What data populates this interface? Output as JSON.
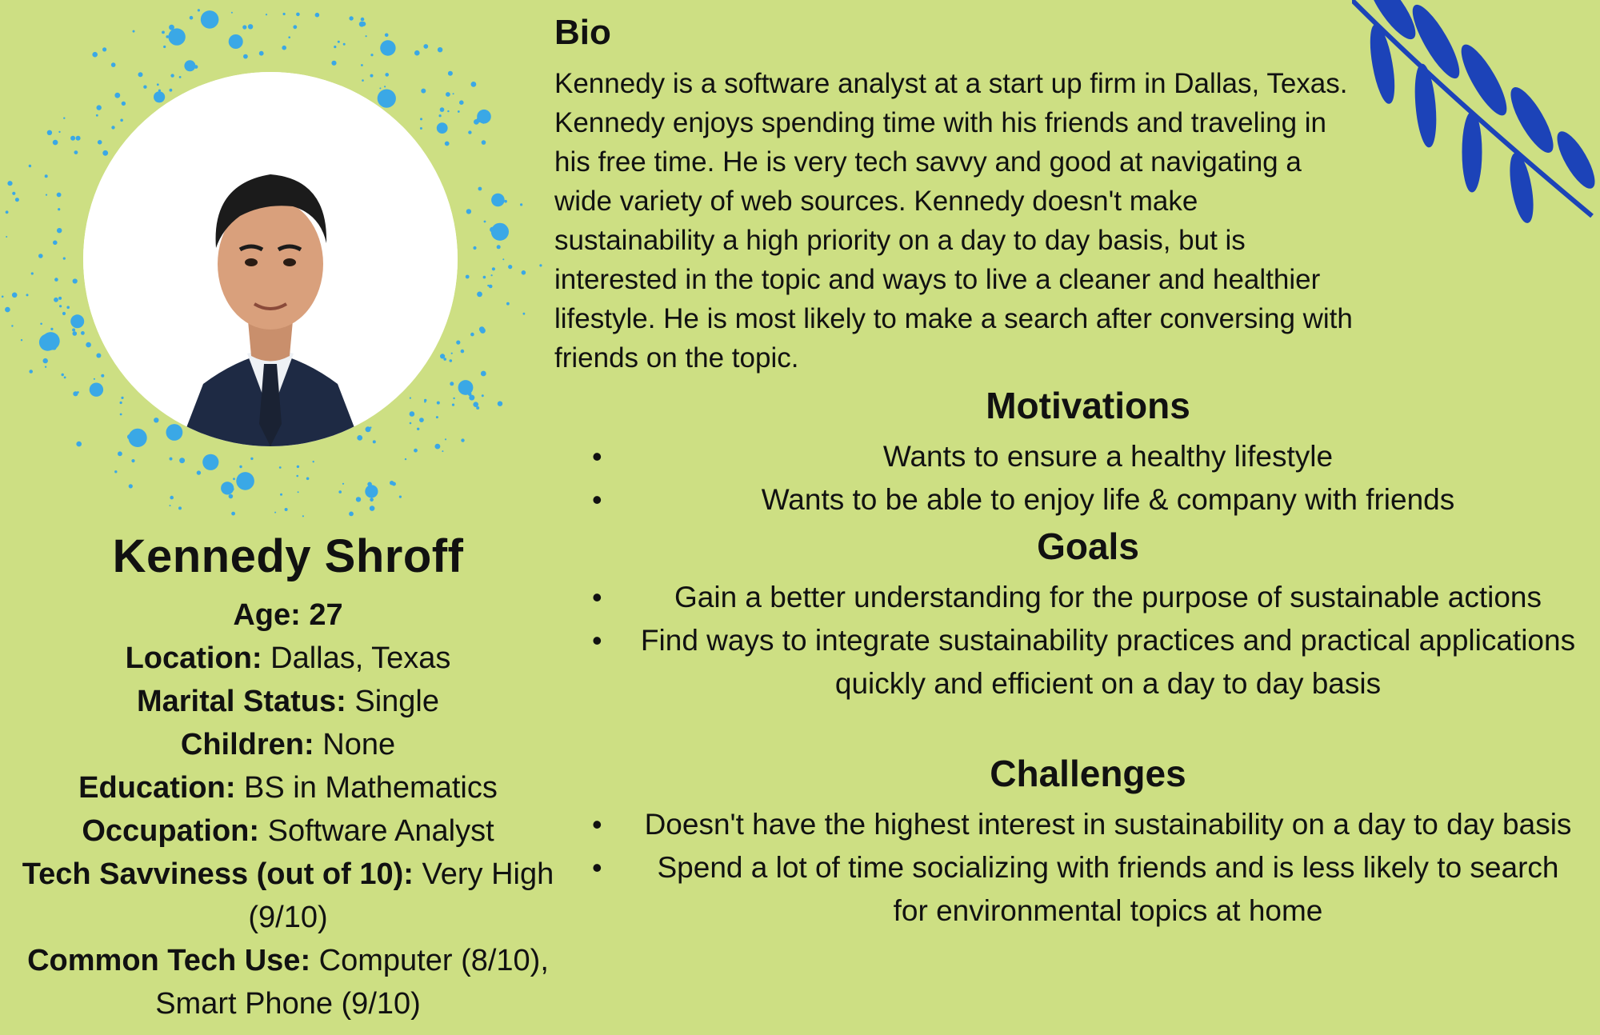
{
  "bio": {
    "title": "Bio",
    "text": "Kennedy is a software analyst at a start up firm in Dallas, Texas. Kennedy enjoys spending time with his friends and traveling in his free time. He is very tech savvy and good at navigating a wide variety of web sources. Kennedy doesn't make sustainability a high priority on a day to day basis, but is interested in the topic and ways to live a cleaner and healthier lifestyle. He is most likely to make a search after conversing with friends on the topic."
  },
  "profile": {
    "name": "Kennedy Shroff",
    "age_label": "Age: 27",
    "location_label": "Location:",
    "location_value": " Dallas, Texas",
    "marital_label": "Marital Status:",
    "marital_value": " Single",
    "children_label": "Children:",
    "children_value": " None",
    "education_label": "Education:",
    "education_value": " BS in Mathematics",
    "occupation_label": "Occupation:",
    "occupation_value": " Software Analyst",
    "tech_label": "Tech Savviness (out of 10):",
    "tech_value": " Very High (9/10)",
    "common_label": "Common Tech Use:",
    "common_value": " Computer (8/10), Smart Phone (9/10)"
  },
  "motivations": {
    "title": "Motivations",
    "items": [
      "Wants to ensure a healthy lifestyle",
      "Wants to be able to enjoy life & company with friends"
    ]
  },
  "goals": {
    "title": "Goals",
    "items": [
      "Gain a better understanding for the purpose of sustainable actions",
      "Find ways to integrate sustainability practices and practical applications quickly and efficient on a day to day basis"
    ]
  },
  "challenges": {
    "title": "Challenges",
    "items": [
      "Doesn't have the highest interest in sustainability on a day to day basis",
      "Spend a lot of time socializing with friends and is less likely to search for environmental topics at home"
    ]
  },
  "colors": {
    "background": "#cddf83",
    "splatter": "#3aa8e6",
    "leaf": "#1c43b8"
  },
  "icons": {
    "bullet": "•",
    "decoration": "leaf-branch-icon",
    "splatter": "paint-splatter-icon"
  }
}
